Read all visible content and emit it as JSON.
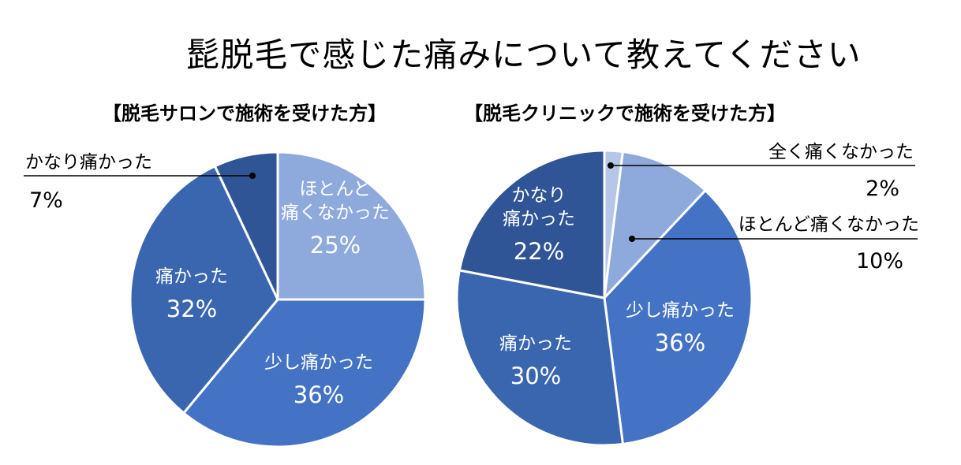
{
  "title": "髭脱毛で感じた痛みについて教えてください",
  "colors": {
    "very_painful": "#2f5596",
    "painful": "#3a66b0",
    "slightly_painful": "#4473c5",
    "almost_no_pain": "#8ea9db",
    "no_pain": "#b4c7e7",
    "border": "#ffffff",
    "leader": "#000000"
  },
  "chart_data": [
    {
      "type": "pie",
      "title": "【脱毛サロンで施術を受けた方】",
      "slices": [
        {
          "label": "ほとんど痛くなかった",
          "lines": [
            "ほとんど",
            "痛くなかった"
          ],
          "value": 25,
          "pct_label": "25%",
          "color_key": "almost_no_pain",
          "label_position": "inside"
        },
        {
          "label": "少し痛かった",
          "lines": [
            "少し痛かった"
          ],
          "value": 36,
          "pct_label": "36%",
          "color_key": "slightly_painful",
          "label_position": "inside"
        },
        {
          "label": "痛かった",
          "lines": [
            "痛かった"
          ],
          "value": 32,
          "pct_label": "32%",
          "color_key": "painful",
          "label_position": "inside"
        },
        {
          "label": "かなり痛かった",
          "lines": [
            "かなり痛かった"
          ],
          "value": 7,
          "pct_label": "7%",
          "color_key": "very_painful",
          "label_position": "outside-left"
        }
      ]
    },
    {
      "type": "pie",
      "title": "【脱毛クリニックで施術を受けた方】",
      "slices": [
        {
          "label": "全く痛くなかった",
          "lines": [
            "全く痛くなかった"
          ],
          "value": 2,
          "pct_label": "2%",
          "color_key": "no_pain",
          "label_position": "outside-right"
        },
        {
          "label": "ほとんど痛くなかった",
          "lines": [
            "ほとんど痛くなかった"
          ],
          "value": 10,
          "pct_label": "10%",
          "color_key": "almost_no_pain",
          "label_position": "outside-right"
        },
        {
          "label": "少し痛かった",
          "lines": [
            "少し痛かった"
          ],
          "value": 36,
          "pct_label": "36%",
          "color_key": "slightly_painful",
          "label_position": "inside"
        },
        {
          "label": "痛かった",
          "lines": [
            "痛かった"
          ],
          "value": 30,
          "pct_label": "30%",
          "color_key": "painful",
          "label_position": "inside"
        },
        {
          "label": "かなり痛かった",
          "lines": [
            "かなり",
            "痛かった"
          ],
          "value": 22,
          "pct_label": "22%",
          "color_key": "very_painful",
          "label_position": "inside"
        }
      ]
    }
  ]
}
